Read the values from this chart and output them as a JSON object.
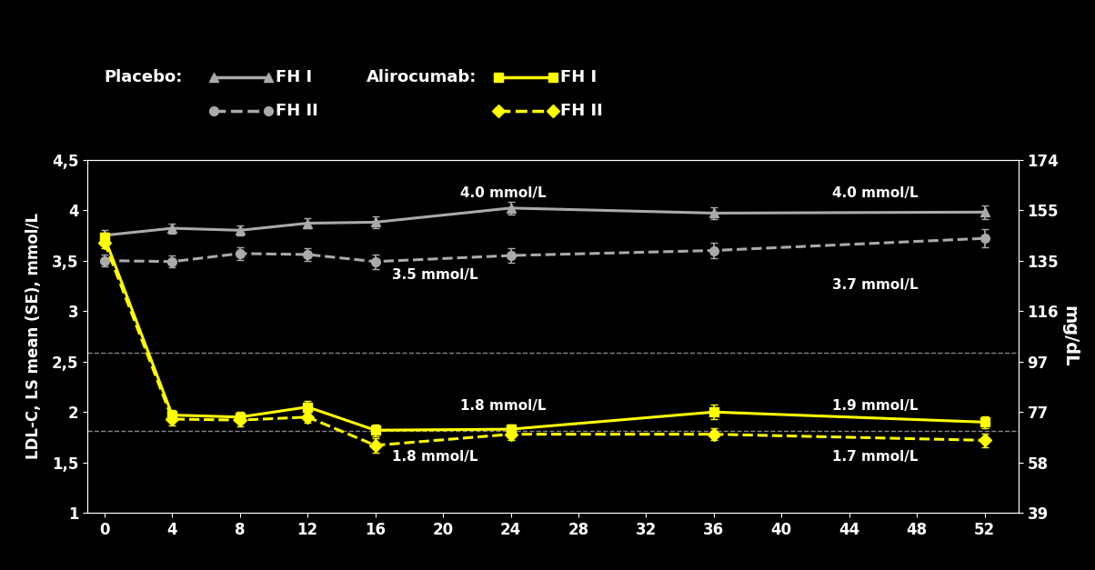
{
  "background_color": "#000000",
  "text_color": "#ffffff",
  "x_ticks": [
    0,
    4,
    8,
    12,
    16,
    20,
    24,
    28,
    32,
    36,
    40,
    44,
    48,
    52
  ],
  "ylim": [
    1.0,
    4.5
  ],
  "xlim": [
    -1,
    54
  ],
  "placebo_fh1_x": [
    0,
    4,
    8,
    12,
    16,
    24,
    36,
    52
  ],
  "placebo_fh1_y": [
    3.75,
    3.82,
    3.8,
    3.87,
    3.88,
    4.02,
    3.97,
    3.98
  ],
  "placebo_fh1_err": [
    0.05,
    0.05,
    0.05,
    0.05,
    0.06,
    0.06,
    0.06,
    0.07
  ],
  "placebo_fh2_x": [
    0,
    4,
    8,
    12,
    16,
    24,
    36,
    52
  ],
  "placebo_fh2_y": [
    3.5,
    3.49,
    3.57,
    3.56,
    3.49,
    3.55,
    3.6,
    3.72
  ],
  "placebo_fh2_err": [
    0.06,
    0.06,
    0.06,
    0.06,
    0.07,
    0.07,
    0.08,
    0.09
  ],
  "ali_fh1_x": [
    0,
    4,
    8,
    12,
    16,
    24,
    36,
    52
  ],
  "ali_fh1_y": [
    3.73,
    1.97,
    1.95,
    2.05,
    1.82,
    1.83,
    2.0,
    1.9
  ],
  "ali_fh1_err": [
    0.05,
    0.05,
    0.05,
    0.06,
    0.06,
    0.05,
    0.07,
    0.06
  ],
  "ali_fh2_x": [
    0,
    4,
    8,
    12,
    16,
    24,
    36,
    52
  ],
  "ali_fh2_y": [
    3.68,
    1.93,
    1.92,
    1.95,
    1.67,
    1.78,
    1.78,
    1.72
  ],
  "ali_fh2_err": [
    0.06,
    0.06,
    0.06,
    0.06,
    0.07,
    0.06,
    0.06,
    0.07
  ],
  "placebo_color": "#aaaaaa",
  "ali_color": "#ffff00",
  "hline1_y": 2.585,
  "hline2_y": 1.81,
  "ylabel_left": "LDL-C, LS mean (SE), mmol/L",
  "ylabel_right": "mg/dL",
  "left_yticks": [
    1.0,
    1.5,
    2.0,
    2.5,
    3.0,
    3.5,
    4.0,
    4.5
  ],
  "left_ytick_labels": [
    "1",
    "1,5",
    "2",
    "2,5",
    "3",
    "3,5",
    "4",
    "4,5"
  ],
  "right_ticks_mmol": [
    1.0,
    1.5,
    2.0,
    2.5,
    3.0,
    3.5,
    4.0,
    4.5
  ],
  "right_tick_labels": [
    "39",
    "58",
    "77",
    "97",
    "116",
    "135",
    "155",
    "174"
  ]
}
